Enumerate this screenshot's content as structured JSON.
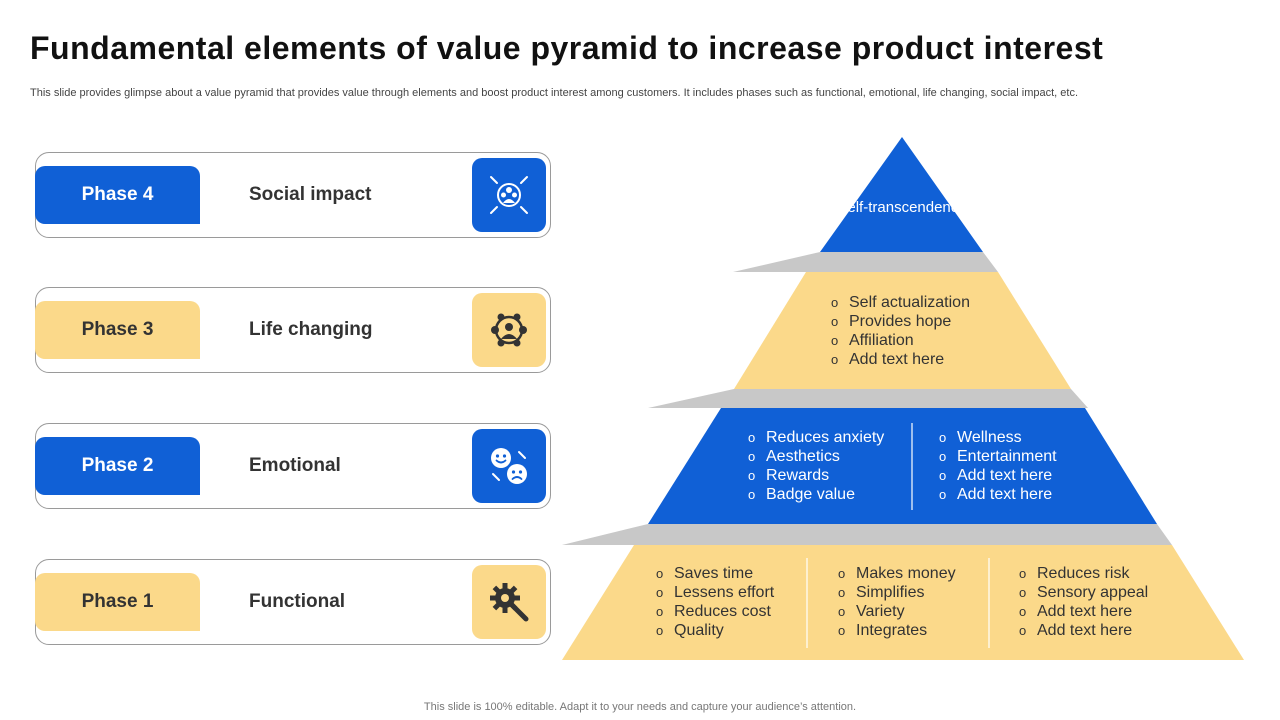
{
  "header": {
    "title": "Fundamental elements of value pyramid to increase product interest",
    "subtitle": "This slide provides glimpse about a value pyramid that provides value through elements and boost product interest among customers. It includes phases such as functional, emotional, life changing, social impact, etc."
  },
  "phases": [
    {
      "tag": "Phase 4",
      "label": "Social impact",
      "icon": "social-impact-icon",
      "color": "#1060d6"
    },
    {
      "tag": "Phase 3",
      "label": "Life changing",
      "icon": "life-changing-icon",
      "color": "#fbd98a"
    },
    {
      "tag": "Phase 2",
      "label": "Emotional",
      "icon": "emotions-icon",
      "color": "#1060d6"
    },
    {
      "tag": "Phase 1",
      "label": "Functional",
      "icon": "gear-wrench-icon",
      "color": "#fbd98a"
    }
  ],
  "pyramid": {
    "top": "Self-transcendence",
    "tier2": [
      "Self actualization",
      "Provides hope",
      "Affiliation",
      "Add text here"
    ],
    "tier3": {
      "left": [
        "Reduces anxiety",
        "Aesthetics",
        "Rewards",
        "Badge value"
      ],
      "right": [
        "Wellness",
        "Entertainment",
        "Add text here",
        "Add text here"
      ]
    },
    "tier4": {
      "col1": [
        "Saves time",
        "Lessens effort",
        "Reduces cost",
        "Quality"
      ],
      "col2": [
        "Makes money",
        "Simplifies",
        "Variety",
        "Integrates"
      ],
      "col3": [
        "Reduces risk",
        "Sensory appeal",
        "Add text here",
        "Add text here"
      ]
    }
  },
  "colors": {
    "blue": "#1060d6",
    "yellow": "#fbd98a",
    "shadow": "#c8c8c8"
  },
  "footer": "This slide is 100% editable. Adapt it to your needs and capture your audience’s attention."
}
